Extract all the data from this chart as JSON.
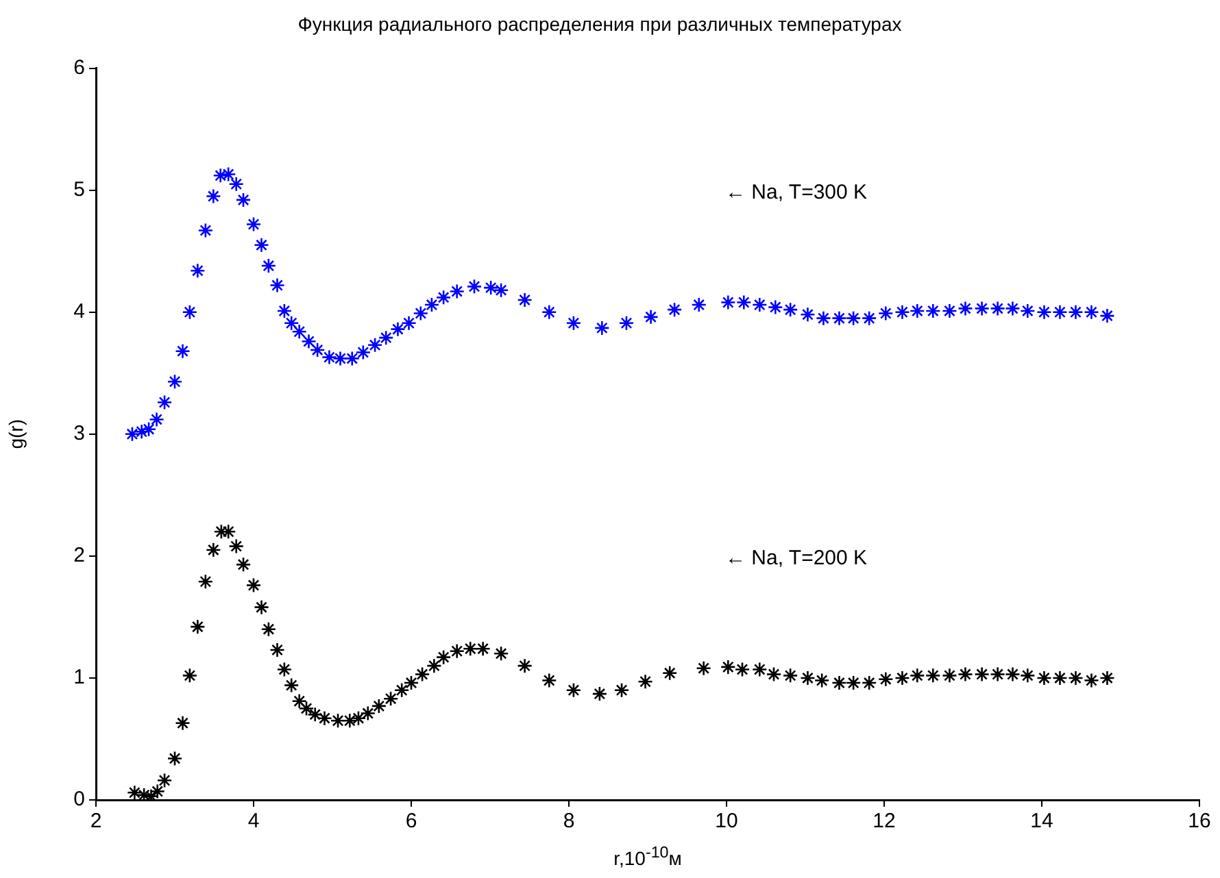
{
  "chart_data": {
    "type": "scatter",
    "title": "Функция радиального распределения при различных температурах",
    "xlabel": "r,10$^{-10}$м",
    "ylabel": "g(r)",
    "xlim": [
      2,
      16
    ],
    "xticks": [
      2,
      4,
      6,
      8,
      10,
      12,
      14,
      16
    ],
    "ylim": [
      0,
      6
    ],
    "yticks": [
      0,
      1,
      2,
      3,
      4,
      5,
      6
    ],
    "grid": false,
    "legend": false,
    "marker": "cross",
    "annotations": [
      "← Na, T=300 K",
      "← Na, T=200 K"
    ],
    "series": [
      {
        "color": "#0000ff",
        "x": [
          2.46,
          2.58,
          2.67,
          2.77,
          2.87,
          3.0,
          3.1,
          3.19,
          3.29,
          3.39,
          3.49,
          3.58,
          3.68,
          3.78,
          3.87,
          4.0,
          4.1,
          4.19,
          4.3,
          4.39,
          4.48,
          4.58,
          4.7,
          4.81,
          4.96,
          5.1,
          5.25,
          5.39,
          5.54,
          5.68,
          5.83,
          5.97,
          6.12,
          6.26,
          6.41,
          6.58,
          6.8,
          7.01,
          7.14,
          7.44,
          7.75,
          8.06,
          8.42,
          8.73,
          9.04,
          9.34,
          9.65,
          10.02,
          10.22,
          10.42,
          10.62,
          10.81,
          11.03,
          11.23,
          11.43,
          11.61,
          11.81,
          12.02,
          12.23,
          12.42,
          12.62,
          12.83,
          13.03,
          13.24,
          13.44,
          13.63,
          13.82,
          14.03,
          14.23,
          14.43,
          14.63,
          14.83
        ],
        "values": [
          3.0,
          3.02,
          3.04,
          3.12,
          3.26,
          3.43,
          3.68,
          4.0,
          4.34,
          4.67,
          4.95,
          5.12,
          5.13,
          5.05,
          4.92,
          4.72,
          4.55,
          4.38,
          4.22,
          4.01,
          3.91,
          3.84,
          3.76,
          3.69,
          3.63,
          3.62,
          3.62,
          3.67,
          3.73,
          3.79,
          3.86,
          3.91,
          3.99,
          4.06,
          4.12,
          4.17,
          4.21,
          4.2,
          4.18,
          4.1,
          4.0,
          3.91,
          3.87,
          3.91,
          3.96,
          4.02,
          4.06,
          4.08,
          4.08,
          4.06,
          4.04,
          4.02,
          3.98,
          3.95,
          3.95,
          3.95,
          3.95,
          3.99,
          4.0,
          4.01,
          4.01,
          4.01,
          4.03,
          4.03,
          4.03,
          4.03,
          4.01,
          4.0,
          4.0,
          4.0,
          4.0,
          3.97
        ]
      },
      {
        "color": "#000000",
        "x": [
          2.49,
          2.61,
          2.7,
          2.78,
          2.87,
          3.0,
          3.1,
          3.19,
          3.29,
          3.39,
          3.49,
          3.59,
          3.68,
          3.78,
          3.87,
          4.0,
          4.1,
          4.19,
          4.3,
          4.39,
          4.48,
          4.58,
          4.67,
          4.78,
          4.9,
          5.07,
          5.22,
          5.33,
          5.45,
          5.59,
          5.74,
          5.88,
          6.0,
          6.14,
          6.29,
          6.41,
          6.58,
          6.75,
          6.91,
          7.14,
          7.44,
          7.75,
          8.06,
          8.39,
          8.67,
          8.97,
          9.28,
          9.71,
          10.02,
          10.2,
          10.42,
          10.6,
          10.81,
          11.03,
          11.21,
          11.43,
          11.61,
          11.81,
          12.02,
          12.23,
          12.42,
          12.62,
          12.83,
          13.03,
          13.24,
          13.44,
          13.63,
          13.82,
          14.03,
          14.23,
          14.43,
          14.63,
          14.83
        ],
        "values": [
          0.06,
          0.04,
          0.03,
          0.07,
          0.16,
          0.34,
          0.63,
          1.02,
          1.42,
          1.79,
          2.05,
          2.2,
          2.2,
          2.08,
          1.93,
          1.76,
          1.58,
          1.4,
          1.23,
          1.07,
          0.94,
          0.81,
          0.75,
          0.7,
          0.67,
          0.65,
          0.65,
          0.67,
          0.71,
          0.77,
          0.83,
          0.9,
          0.96,
          1.03,
          1.1,
          1.17,
          1.22,
          1.24,
          1.24,
          1.2,
          1.1,
          0.98,
          0.9,
          0.87,
          0.9,
          0.97,
          1.04,
          1.08,
          1.09,
          1.07,
          1.07,
          1.03,
          1.02,
          1.0,
          0.98,
          0.96,
          0.96,
          0.96,
          0.99,
          1.0,
          1.02,
          1.02,
          1.02,
          1.03,
          1.03,
          1.03,
          1.03,
          1.02,
          1.0,
          1.0,
          1.0,
          0.98,
          1.0
        ]
      }
    ]
  }
}
